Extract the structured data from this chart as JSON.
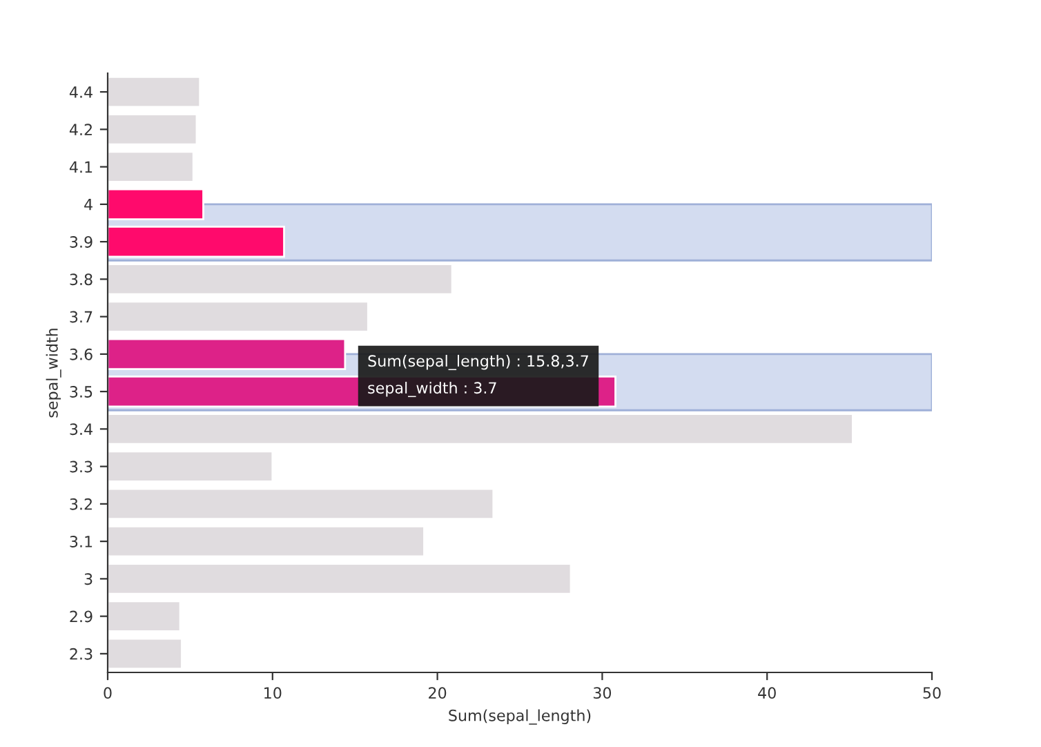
{
  "chart_data": {
    "type": "bar",
    "orientation": "horizontal",
    "xlabel": "Sum(sepal_length)",
    "ylabel": "sepal_width",
    "categories": [
      "4.4",
      "4.2",
      "4.1",
      "4",
      "3.9",
      "3.8",
      "3.7",
      "3.6",
      "3.5",
      "3.4",
      "3.3",
      "3.2",
      "3.1",
      "3",
      "2.9",
      "2.3"
    ],
    "values": [
      5.6,
      5.4,
      5.2,
      5.8,
      10.7,
      20.9,
      15.8,
      14.4,
      30.8,
      45.2,
      10.0,
      23.4,
      19.2,
      28.1,
      4.4,
      4.5
    ],
    "colors": [
      "#e0dcdf",
      "#e0dcdf",
      "#e0dcdf",
      "#ff0a6c",
      "#ff0a6c",
      "#e0dcdf",
      "#e0dcdf",
      "#dd2288",
      "#dd2288",
      "#e0dcdf",
      "#e0dcdf",
      "#e0dcdf",
      "#e0dcdf",
      "#e0dcdf",
      "#e0dcdf",
      "#e0dcdf"
    ],
    "xlim": [
      0,
      50
    ],
    "xticks": [
      0,
      10,
      20,
      30,
      40,
      50
    ],
    "bands": [
      {
        "axis": "y",
        "from": "4",
        "to": "3.9",
        "color": "#d3dcf0"
      },
      {
        "axis": "y",
        "from": "3.6",
        "to": "3.5",
        "color": "#d3dcf0"
      }
    ],
    "annotations": [
      "Sum(sepal_length) : 15.8,3.7",
      "sepal_width : 3.7"
    ],
    "grid": false,
    "legend": false
  }
}
